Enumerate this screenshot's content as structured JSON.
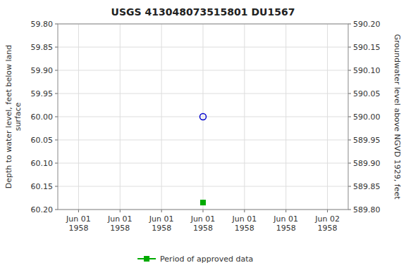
{
  "chart_data": {
    "type": "scatter",
    "title": "USGS 413048073515801 DU1567",
    "y_label": "Depth to water level, feet below land\nsurface",
    "y2_label": "Groundwater level above NGVD 1929, feet",
    "categories": [
      "Jun 01\n1958",
      "Jun 01\n1958",
      "Jun 01\n1958",
      "Jun 01\n1958",
      "Jun 01\n1958",
      "Jun 01\n1958",
      "Jun 02\n1958"
    ],
    "series": [
      {
        "color": "#0000cc",
        "marker": "open-circle",
        "line_style": "none",
        "values": [
          null,
          null,
          null,
          60.0,
          null,
          null,
          null
        ]
      },
      {
        "name": "Period of approved data",
        "color": "#00aa00",
        "marker": "square",
        "line_style": "solid",
        "values": [
          null,
          null,
          null,
          60.185,
          null,
          null,
          null
        ]
      }
    ],
    "ylim": [
      60.2,
      59.8
    ],
    "yticks": [
      {
        "value": 59.8,
        "label": "59.80"
      },
      {
        "value": 59.85,
        "label": "59.85"
      },
      {
        "value": 59.9,
        "label": "59.90"
      },
      {
        "value": 59.95,
        "label": "59.95"
      },
      {
        "value": 60.0,
        "label": "60.00"
      },
      {
        "value": 60.05,
        "label": "60.05"
      },
      {
        "value": 60.1,
        "label": "60.10"
      },
      {
        "value": 60.15,
        "label": "60.15"
      },
      {
        "value": 60.2,
        "label": "60.20"
      }
    ],
    "y2lim": [
      589.8,
      590.2
    ],
    "y2ticks": [
      {
        "value": 590.2,
        "label": "590.20"
      },
      {
        "value": 590.15,
        "label": "590.15"
      },
      {
        "value": 590.1,
        "label": "590.10"
      },
      {
        "value": 590.05,
        "label": "590.05"
      },
      {
        "value": 590.0,
        "label": "590.00"
      },
      {
        "value": 589.95,
        "label": "589.95"
      },
      {
        "value": 589.9,
        "label": "589.90"
      },
      {
        "value": 589.85,
        "label": "589.85"
      },
      {
        "value": 589.8,
        "label": "589.80"
      }
    ],
    "grid": true,
    "legend": "bottom"
  }
}
